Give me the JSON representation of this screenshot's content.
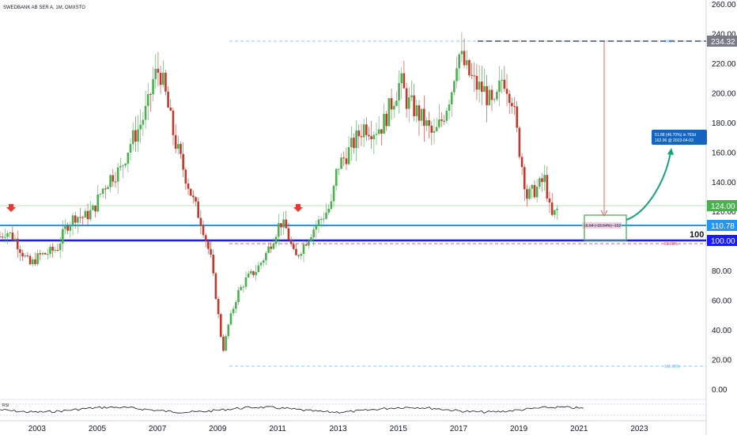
{
  "chart_data": {
    "type": "candlestick",
    "title": "SWEDBANK AB SER A, 1M, OMXSTO",
    "ylim": [
      -5,
      265
    ],
    "y_ticks": [
      "260.00",
      "240.00",
      "220.00",
      "200.00",
      "180.00",
      "160.00",
      "140.00",
      "120.00",
      "100.00",
      "80.00",
      "60.00",
      "40.00",
      "20.00",
      "0.00"
    ],
    "y_tick_values": [
      260,
      240,
      220,
      200,
      180,
      160,
      140,
      120,
      100,
      80,
      60,
      40,
      20,
      0
    ],
    "x_ticks": [
      "2003",
      "2005",
      "2007",
      "2009",
      "2011",
      "2013",
      "2015",
      "2017",
      "2019",
      "2021",
      "2023"
    ],
    "x_tick_values": [
      2003,
      2005,
      2007,
      2009,
      2011,
      2013,
      2015,
      2017,
      2019,
      2021,
      2023
    ],
    "xlim": [
      2001.8,
      2025.25
    ],
    "close_series": [
      {
        "x": 2001.8,
        "y": 103
      },
      {
        "x": 2002.0,
        "y": 107
      },
      {
        "x": 2002.3,
        "y": 101
      },
      {
        "x": 2002.6,
        "y": 90
      },
      {
        "x": 2002.8,
        "y": 84
      },
      {
        "x": 2003.1,
        "y": 90
      },
      {
        "x": 2003.4,
        "y": 92
      },
      {
        "x": 2003.7,
        "y": 95
      },
      {
        "x": 2004.0,
        "y": 110
      },
      {
        "x": 2004.3,
        "y": 117
      },
      {
        "x": 2004.6,
        "y": 116
      },
      {
        "x": 2004.9,
        "y": 121
      },
      {
        "x": 2005.2,
        "y": 135
      },
      {
        "x": 2005.5,
        "y": 144
      },
      {
        "x": 2005.8,
        "y": 148
      },
      {
        "x": 2006.1,
        "y": 165
      },
      {
        "x": 2006.4,
        "y": 176
      },
      {
        "x": 2006.7,
        "y": 190
      },
      {
        "x": 2006.9,
        "y": 210
      },
      {
        "x": 2007.1,
        "y": 216
      },
      {
        "x": 2007.3,
        "y": 198
      },
      {
        "x": 2007.6,
        "y": 168
      },
      {
        "x": 2007.9,
        "y": 148
      },
      {
        "x": 2008.2,
        "y": 128
      },
      {
        "x": 2008.5,
        "y": 112
      },
      {
        "x": 2008.8,
        "y": 88
      },
      {
        "x": 2009.0,
        "y": 58
      },
      {
        "x": 2009.2,
        "y": 25
      },
      {
        "x": 2009.4,
        "y": 45
      },
      {
        "x": 2009.7,
        "y": 65
      },
      {
        "x": 2010.0,
        "y": 75
      },
      {
        "x": 2010.3,
        "y": 80
      },
      {
        "x": 2010.6,
        "y": 90
      },
      {
        "x": 2010.9,
        "y": 103
      },
      {
        "x": 2011.1,
        "y": 113
      },
      {
        "x": 2011.3,
        "y": 108
      },
      {
        "x": 2011.6,
        "y": 88
      },
      {
        "x": 2011.9,
        "y": 98
      },
      {
        "x": 2012.2,
        "y": 108
      },
      {
        "x": 2012.5,
        "y": 116
      },
      {
        "x": 2012.8,
        "y": 124
      },
      {
        "x": 2013.0,
        "y": 150
      },
      {
        "x": 2013.3,
        "y": 158
      },
      {
        "x": 2013.6,
        "y": 168
      },
      {
        "x": 2013.9,
        "y": 178
      },
      {
        "x": 2014.2,
        "y": 175
      },
      {
        "x": 2014.5,
        "y": 178
      },
      {
        "x": 2014.8,
        "y": 193
      },
      {
        "x": 2015.1,
        "y": 208
      },
      {
        "x": 2015.3,
        "y": 195
      },
      {
        "x": 2015.6,
        "y": 188
      },
      {
        "x": 2015.9,
        "y": 180
      },
      {
        "x": 2016.2,
        "y": 170
      },
      {
        "x": 2016.5,
        "y": 183
      },
      {
        "x": 2016.8,
        "y": 203
      },
      {
        "x": 2017.0,
        "y": 228
      },
      {
        "x": 2017.3,
        "y": 215
      },
      {
        "x": 2017.6,
        "y": 205
      },
      {
        "x": 2017.9,
        "y": 201
      },
      {
        "x": 2018.2,
        "y": 188
      },
      {
        "x": 2018.5,
        "y": 212
      },
      {
        "x": 2018.8,
        "y": 197
      },
      {
        "x": 2019.0,
        "y": 168
      },
      {
        "x": 2019.3,
        "y": 130
      },
      {
        "x": 2019.6,
        "y": 135
      },
      {
        "x": 2019.9,
        "y": 142
      },
      {
        "x": 2020.1,
        "y": 115
      },
      {
        "x": 2020.3,
        "y": 121
      }
    ],
    "levels": [
      {
        "name": "top",
        "value": 234.32,
        "label": "234.32",
        "color": "#787b86"
      },
      {
        "name": "green",
        "value": 124.0,
        "label": "124.00",
        "color": "#4caf50"
      },
      {
        "name": "light-blue",
        "value": 110.78,
        "label": "110.78",
        "color": "#2196f3"
      },
      {
        "name": "blue",
        "value": 100.0,
        "label": "100.00",
        "color": "#0000ff"
      }
    ],
    "level_label": "100",
    "fib_left_top": "0.00%",
    "fib_left_bottom": "100.00%",
    "fib_right_mid": "61.80%",
    "measure_text": "16.64 (-15.54%) -152",
    "projection_box": {
      "line1": "51.88 (46.70%) in 763d",
      "line2": "162.96 @ 2023-04-03"
    },
    "rsi_label": "RSI",
    "colors": {
      "up": "#4caf50",
      "down": "#c0392b",
      "grid": "#e0e3eb",
      "target_arrow": "#12a37c",
      "drop_arrow": "#e53935",
      "projection_tag": "#1565c0",
      "green_box": "#4caf50"
    }
  }
}
